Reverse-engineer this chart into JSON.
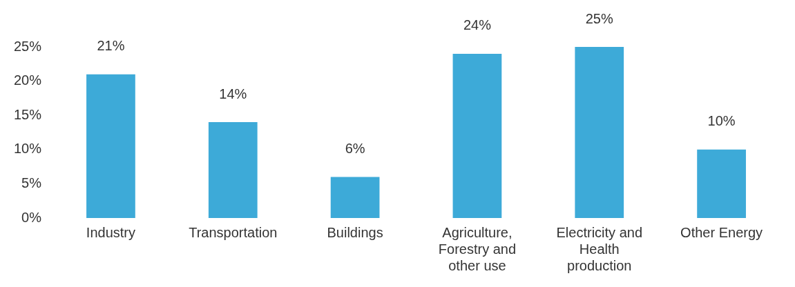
{
  "chart_data": {
    "type": "bar",
    "categories": [
      "Industry",
      "Transportation",
      "Buildings",
      "Agriculture, Forestry and other use",
      "Electricity and Health production",
      "Other Energy"
    ],
    "values": [
      21,
      14,
      6,
      24,
      25,
      10
    ],
    "value_labels": [
      "21%",
      "14%",
      "6%",
      "24%",
      "25%",
      "10%"
    ],
    "color": "#3daad8",
    "ylim": [
      0,
      25
    ],
    "yticks": [
      {
        "value": 0,
        "label": "0%"
      },
      {
        "value": 5,
        "label": "5%"
      },
      {
        "value": 10,
        "label": "10%"
      },
      {
        "value": 15,
        "label": "15%"
      },
      {
        "value": 20,
        "label": "20%"
      },
      {
        "value": 25,
        "label": "25%"
      }
    ],
    "grid": false,
    "legend": false
  }
}
